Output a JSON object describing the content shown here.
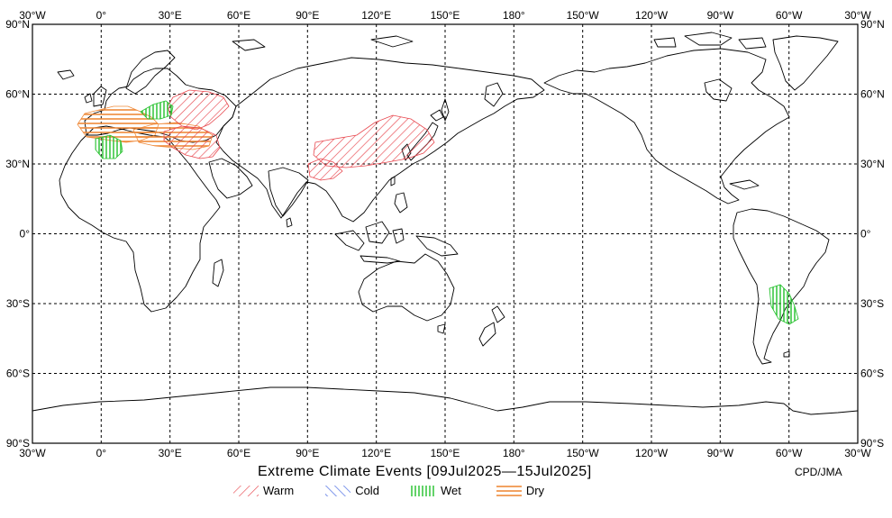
{
  "map": {
    "title": "Extreme Climate Events [09Jul2025—15Jul2025]",
    "credit": "CPD/JMA",
    "lon_labels_top": [
      "30°W",
      "0°",
      "30°E",
      "60°E",
      "90°E",
      "120°E",
      "150°E",
      "180°",
      "150°W",
      "120°W",
      "90°W",
      "60°W",
      "30°W"
    ],
    "lat_labels": [
      "90°N",
      "60°N",
      "30°N",
      "0°",
      "30°S",
      "60°S",
      "90°S"
    ],
    "projection": "equirectangular, centred on 150°E (30°W to 30°W)",
    "grid": "dashed 30° graticule"
  },
  "legend": [
    {
      "label": "Warm",
      "color": "#e8484f",
      "pattern": "diagonal-up"
    },
    {
      "label": "Cold",
      "color": "#3a5fe0",
      "pattern": "diagonal-down"
    },
    {
      "label": "Wet",
      "color": "#22c02a",
      "pattern": "vertical"
    },
    {
      "label": "Dry",
      "color": "#ef8a3a",
      "pattern": "horizontal"
    }
  ],
  "events": [
    {
      "type": "Warm",
      "region": "Eastern Europe / Western Russia"
    },
    {
      "type": "Warm",
      "region": "Eastern Europe to Caspian Sea"
    },
    {
      "type": "Warm",
      "region": "China to Korea and northern Japan"
    },
    {
      "type": "Warm",
      "region": "Southern China"
    },
    {
      "type": "Dry",
      "region": "Western and Central Europe"
    },
    {
      "type": "Dry",
      "region": "Balkans / Black Sea region"
    },
    {
      "type": "Wet",
      "region": "Northwestern Africa"
    },
    {
      "type": "Wet",
      "region": "Central Europe"
    },
    {
      "type": "Wet",
      "region": "Northern Argentina / Paraguay / Uruguay"
    }
  ]
}
